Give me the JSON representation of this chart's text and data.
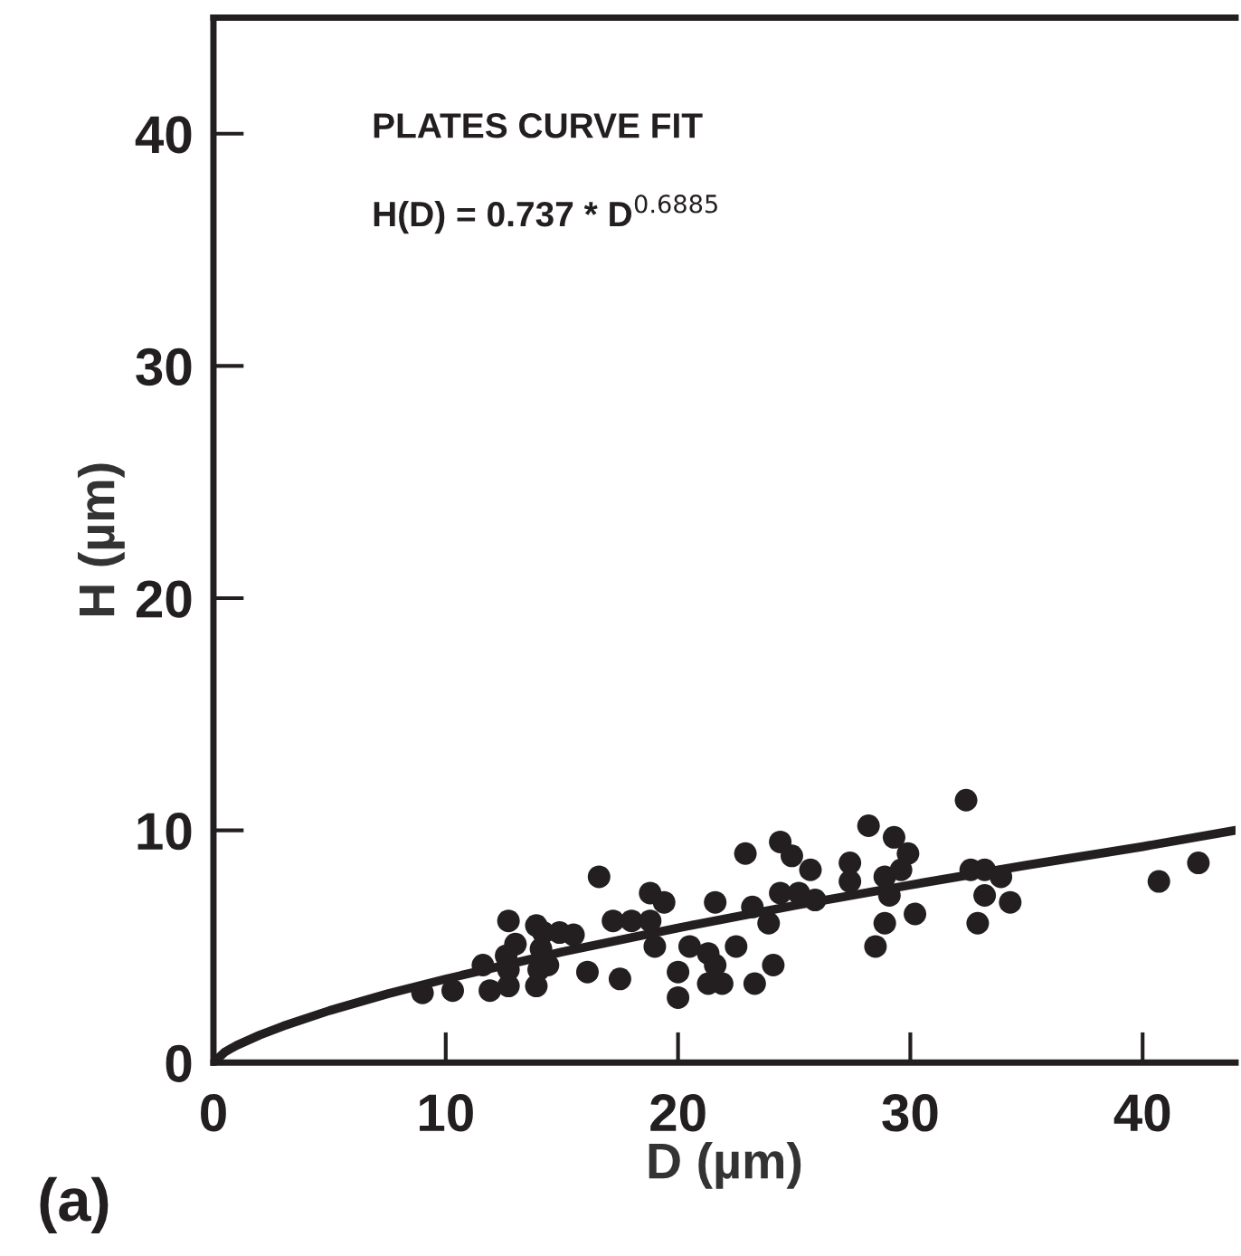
{
  "chart_data": {
    "type": "scatter",
    "xlabel": "D (µm)",
    "ylabel": "H (µm)",
    "annotations": [
      "PLATES CURVE FIT",
      "H(D) = 0.737 * D$^{0.6885}$",
      "(a)"
    ],
    "xlim": [
      0,
      44
    ],
    "ylim": [
      0,
      45
    ],
    "xticks": [
      0,
      10,
      20,
      30,
      40
    ],
    "yticks": [
      0,
      10,
      20,
      30,
      40
    ],
    "grid": false,
    "series": [
      {
        "color": "#231f20",
        "marker": "circle",
        "x": [
          9.0,
          10.3,
          11.9,
          11.6,
          12.7,
          12.7,
          13.0,
          12.6,
          12.7,
          13.9,
          13.9,
          14.2,
          14.1,
          14.4,
          14.0,
          14.9,
          15.5,
          16.1,
          16.6,
          17.2,
          17.5,
          18.0,
          18.8,
          19.4,
          18.8,
          19.0,
          20.0,
          20.0,
          20.5,
          21.3,
          21.6,
          21.3,
          21.9,
          21.6,
          22.5,
          22.9,
          23.3,
          23.2,
          23.9,
          24.1,
          24.4,
          24.9,
          24.4,
          25.2,
          25.7,
          25.9,
          27.4,
          27.4,
          28.2,
          28.9,
          29.3,
          29.9,
          29.6,
          29.1,
          28.9,
          28.5,
          30.2,
          32.4,
          32.6,
          33.2,
          33.9,
          33.2,
          34.3,
          32.9,
          40.7,
          42.4
        ],
        "values": [
          3.0,
          3.1,
          3.1,
          4.2,
          3.3,
          6.1,
          5.1,
          4.6,
          4.0,
          3.3,
          5.9,
          5.6,
          4.9,
          4.2,
          4.0,
          5.6,
          5.5,
          3.9,
          8.0,
          6.1,
          3.6,
          6.1,
          7.3,
          6.9,
          6.1,
          5.0,
          3.9,
          2.8,
          5.0,
          4.7,
          4.2,
          3.4,
          3.4,
          6.9,
          5.0,
          9.0,
          3.4,
          6.7,
          6.0,
          4.2,
          9.5,
          8.9,
          7.3,
          7.3,
          8.3,
          7.0,
          8.6,
          7.8,
          10.2,
          8.0,
          9.7,
          9.0,
          8.3,
          7.2,
          6.0,
          5.0,
          6.4,
          11.3,
          8.3,
          8.3,
          8.0,
          7.2,
          6.9,
          6.0,
          7.8,
          8.6
        ]
      },
      {
        "type": "line",
        "color": "#231f20",
        "line_style": "solid",
        "marker": "none",
        "x": [
          0,
          0.5,
          1,
          2,
          3,
          5,
          7.5,
          10,
          15,
          20,
          25,
          30,
          35,
          40,
          44
        ],
        "values": [
          0,
          0.46,
          0.74,
          1.19,
          1.57,
          2.24,
          2.96,
          3.6,
          4.76,
          5.8,
          6.76,
          7.65,
          8.5,
          9.3,
          10.0
        ]
      }
    ]
  }
}
